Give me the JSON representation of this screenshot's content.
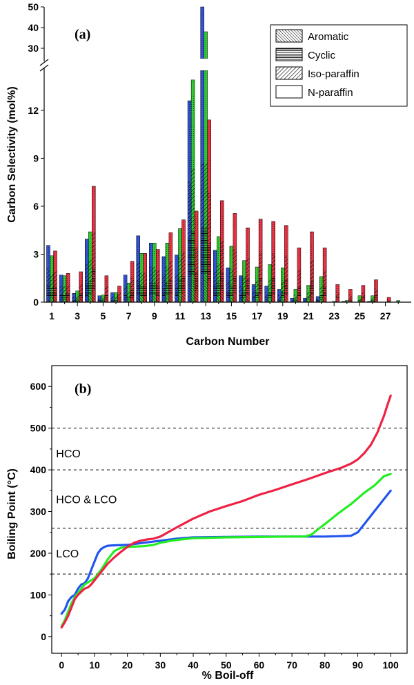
{
  "chart_data": [
    {
      "panel": "(a)",
      "type": "bar",
      "stacked": true,
      "ylabel": "Carbon Selectivity (mol%)",
      "xlabel": "Carbon Number",
      "xticks": [
        "1",
        "3",
        "5",
        "7",
        "9",
        "11",
        "13",
        "15",
        "17",
        "19",
        "21",
        "23",
        "25",
        "27"
      ],
      "ylim_lower": [
        0,
        14.5
      ],
      "ylim_upper": [
        25,
        50
      ],
      "yticks_lower": [
        "0",
        "3",
        "6",
        "9",
        "12"
      ],
      "yticks_upper": [
        "30",
        "40",
        "50"
      ],
      "legend": [
        "Aromatic",
        "Cyclic",
        "Iso-paraffin",
        "N-paraffin"
      ],
      "legend_position": "top-right",
      "colors": {
        "series1": "#3355dd",
        "series2": "#33cc33",
        "series3": "#ee3344"
      },
      "categories": [
        1,
        2,
        3,
        4,
        5,
        6,
        7,
        8,
        9,
        10,
        11,
        12,
        13,
        14,
        15,
        16,
        17,
        18,
        19,
        20,
        21,
        22,
        23,
        24,
        25,
        26,
        27,
        28
      ],
      "series": [
        {
          "values": [
            3.55,
            1.7,
            0.55,
            3.95,
            0.4,
            0.6,
            1.7,
            4.15,
            3.7,
            2.85,
            2.95,
            12.6,
            50,
            3.25,
            2.15,
            1.65,
            1.1,
            1.0,
            0.8,
            0.25,
            0.25,
            0.35,
            0,
            0.05,
            0,
            0.05,
            0,
            0
          ]
        },
        {
          "values": [
            2.9,
            1.65,
            0.7,
            4.4,
            0.45,
            0.6,
            1.2,
            3.05,
            3.7,
            3.7,
            4.6,
            13.9,
            38,
            4.1,
            3.5,
            2.6,
            2.2,
            2.35,
            2.15,
            0.8,
            1.05,
            1.6,
            0.05,
            0.1,
            0.4,
            0.4,
            0,
            0.1
          ]
        },
        {
          "values": [
            3.2,
            1.8,
            1.9,
            7.25,
            1.65,
            1.0,
            2.55,
            3.05,
            3.3,
            4.35,
            5.15,
            5.7,
            11.4,
            6.35,
            5.55,
            4.65,
            5.2,
            5.05,
            4.8,
            3.4,
            4.4,
            3.4,
            1.1,
            0.8,
            1.05,
            1.4,
            0.3,
            0
          ]
        }
      ],
      "components": [
        {
          "name": "Aromatic",
          "fraction": [
            0.1,
            0.1,
            0.1,
            0.1,
            0.1,
            0.1,
            0.1,
            0.12,
            0.12,
            0.12,
            0.12,
            0.12,
            0.12,
            0.1,
            0.1,
            0.1,
            0.1,
            0.1,
            0.1,
            0.1,
            0.1,
            0.1,
            0.1,
            0.1,
            0.1,
            0.1,
            0.1,
            0.1
          ]
        },
        {
          "name": "Cyclic",
          "fraction": [
            0.2,
            0.2,
            0.2,
            0.2,
            0.2,
            0.2,
            0.2,
            0.2,
            0.2,
            0.2,
            0.2,
            0.2,
            0.2,
            0.2,
            0.2,
            0.2,
            0.2,
            0.2,
            0.2,
            0.2,
            0.2,
            0.2,
            0.2,
            0.2,
            0.2,
            0.2,
            0.2,
            0.2
          ]
        },
        {
          "name": "Iso-paraffin",
          "fraction": [
            0.3,
            0.3,
            0.3,
            0.3,
            0.3,
            0.3,
            0.3,
            0.28,
            0.28,
            0.28,
            0.28,
            0.28,
            0.28,
            0.3,
            0.3,
            0.3,
            0.3,
            0.3,
            0.3,
            0.3,
            0.3,
            0.3,
            0.3,
            0.3,
            0.3,
            0.3,
            0.3,
            0.3
          ]
        }
      ]
    },
    {
      "panel": "(b)",
      "type": "line",
      "ylabel": "Boiling Point (°C)",
      "xlabel": "% Boil-off",
      "xlim": [
        -3,
        105
      ],
      "ylim": [
        -40,
        650
      ],
      "xticks": [
        "0",
        "10",
        "20",
        "30",
        "40",
        "50",
        "60",
        "70",
        "80",
        "90",
        "100"
      ],
      "yticks": [
        "0",
        "100",
        "200",
        "300",
        "400",
        "500",
        "600"
      ],
      "reference_lines": [
        500,
        400,
        260,
        150
      ],
      "zone_labels": [
        {
          "text": "HCO",
          "x": 0,
          "y": 440
        },
        {
          "text": "HCO & LCO",
          "x": 0,
          "y": 330
        },
        {
          "text": "LCO",
          "x": 0,
          "y": 200
        }
      ],
      "series": [
        {
          "color": "#2255ee",
          "x": [
            0,
            1,
            2,
            3,
            4,
            5,
            6,
            7,
            8,
            9,
            10,
            11,
            12,
            13,
            14,
            16,
            20,
            25,
            30,
            35,
            40,
            50,
            60,
            70,
            75,
            80,
            85,
            88,
            90,
            92,
            95,
            98,
            100
          ],
          "y": [
            55,
            65,
            85,
            95,
            100,
            115,
            125,
            128,
            140,
            160,
            180,
            200,
            210,
            215,
            218,
            219,
            220,
            225,
            230,
            235,
            238,
            239,
            240,
            240,
            240,
            240,
            241,
            242,
            250,
            270,
            300,
            330,
            350
          ]
        },
        {
          "color": "#22ee22",
          "x": [
            0,
            1,
            2,
            3,
            4,
            5,
            6,
            7,
            8,
            9,
            10,
            12,
            14,
            16,
            18,
            20,
            25,
            28,
            30,
            35,
            40,
            50,
            60,
            70,
            74,
            76,
            78,
            80,
            84,
            88,
            92,
            95,
            98,
            100
          ],
          "y": [
            25,
            40,
            60,
            80,
            95,
            105,
            115,
            125,
            130,
            135,
            140,
            160,
            185,
            205,
            213,
            215,
            217,
            220,
            225,
            232,
            236,
            238,
            239,
            240,
            240,
            245,
            258,
            270,
            295,
            318,
            345,
            362,
            385,
            390
          ]
        },
        {
          "color": "#ee2244",
          "x": [
            0,
            1,
            2,
            3,
            4,
            5,
            6,
            7,
            8,
            9,
            10,
            12,
            14,
            16,
            18,
            20,
            22,
            24,
            26,
            28,
            30,
            35,
            40,
            45,
            50,
            55,
            60,
            65,
            70,
            75,
            80,
            85,
            88,
            90,
            92,
            94,
            96,
            98,
            99,
            100
          ],
          "y": [
            22,
            35,
            50,
            70,
            90,
            100,
            108,
            115,
            118,
            125,
            135,
            155,
            175,
            190,
            203,
            215,
            225,
            230,
            233,
            235,
            240,
            262,
            283,
            300,
            313,
            325,
            340,
            352,
            365,
            378,
            392,
            405,
            415,
            425,
            440,
            460,
            490,
            530,
            555,
            578
          ]
        }
      ]
    }
  ]
}
